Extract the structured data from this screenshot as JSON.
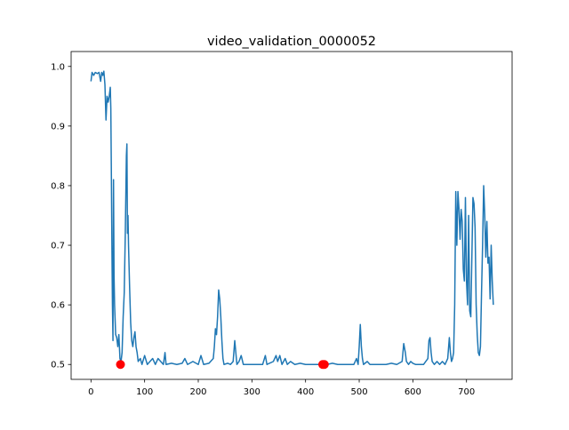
{
  "chart_data": {
    "type": "line",
    "title": "video_validation_0000052",
    "xlabel": "",
    "ylabel": "",
    "xlim": [
      -37,
      785
    ],
    "ylim": [
      0.475,
      1.025
    ],
    "x_ticks": [
      0,
      100,
      200,
      300,
      400,
      500,
      600,
      700
    ],
    "y_ticks": [
      0.5,
      0.6,
      0.7,
      0.8,
      0.9,
      1.0
    ],
    "x_tick_labels": [
      "0",
      "100",
      "200",
      "300",
      "400",
      "500",
      "600",
      "700"
    ],
    "y_tick_labels": [
      "0.5",
      "0.6",
      "0.7",
      "0.8",
      "0.9",
      "1.0"
    ],
    "grid": false,
    "series": [
      {
        "color": "#1f77b4",
        "points": [
          [
            0,
            0.975
          ],
          [
            2,
            0.99
          ],
          [
            5,
            0.985
          ],
          [
            8,
            0.99
          ],
          [
            12,
            0.988
          ],
          [
            15,
            0.99
          ],
          [
            18,
            0.975
          ],
          [
            20,
            0.99
          ],
          [
            22,
            0.985
          ],
          [
            24,
            0.992
          ],
          [
            26,
            0.97
          ],
          [
            28,
            0.91
          ],
          [
            30,
            0.95
          ],
          [
            32,
            0.94
          ],
          [
            34,
            0.95
          ],
          [
            36,
            0.965
          ],
          [
            37,
            0.93
          ],
          [
            38,
            0.82
          ],
          [
            39,
            0.7
          ],
          [
            40,
            0.6
          ],
          [
            41,
            0.54
          ],
          [
            42,
            0.81
          ],
          [
            43,
            0.65
          ],
          [
            44,
            0.6
          ],
          [
            46,
            0.55
          ],
          [
            48,
            0.545
          ],
          [
            50,
            0.53
          ],
          [
            52,
            0.55
          ],
          [
            54,
            0.51
          ],
          [
            56,
            0.505
          ],
          [
            58,
            0.52
          ],
          [
            60,
            0.58
          ],
          [
            62,
            0.62
          ],
          [
            64,
            0.72
          ],
          [
            66,
            0.85
          ],
          [
            67,
            0.87
          ],
          [
            68,
            0.72
          ],
          [
            69,
            0.75
          ],
          [
            70,
            0.7
          ],
          [
            72,
            0.63
          ],
          [
            74,
            0.57
          ],
          [
            76,
            0.54
          ],
          [
            78,
            0.53
          ],
          [
            80,
            0.545
          ],
          [
            82,
            0.555
          ],
          [
            84,
            0.53
          ],
          [
            86,
            0.52
          ],
          [
            88,
            0.505
          ],
          [
            92,
            0.51
          ],
          [
            95,
            0.5
          ],
          [
            100,
            0.515
          ],
          [
            105,
            0.5
          ],
          [
            110,
            0.505
          ],
          [
            115,
            0.51
          ],
          [
            120,
            0.5
          ],
          [
            125,
            0.51
          ],
          [
            130,
            0.505
          ],
          [
            135,
            0.5
          ],
          [
            138,
            0.52
          ],
          [
            140,
            0.5
          ],
          [
            150,
            0.502
          ],
          [
            160,
            0.5
          ],
          [
            170,
            0.502
          ],
          [
            175,
            0.51
          ],
          [
            180,
            0.5
          ],
          [
            190,
            0.505
          ],
          [
            200,
            0.5
          ],
          [
            205,
            0.515
          ],
          [
            210,
            0.5
          ],
          [
            220,
            0.502
          ],
          [
            228,
            0.51
          ],
          [
            230,
            0.53
          ],
          [
            232,
            0.56
          ],
          [
            234,
            0.55
          ],
          [
            236,
            0.58
          ],
          [
            238,
            0.625
          ],
          [
            240,
            0.61
          ],
          [
            242,
            0.58
          ],
          [
            244,
            0.54
          ],
          [
            246,
            0.51
          ],
          [
            248,
            0.5
          ],
          [
            255,
            0.502
          ],
          [
            260,
            0.5
          ],
          [
            265,
            0.505
          ],
          [
            268,
            0.54
          ],
          [
            270,
            0.52
          ],
          [
            272,
            0.5
          ],
          [
            276,
            0.505
          ],
          [
            280,
            0.515
          ],
          [
            284,
            0.5
          ],
          [
            295,
            0.5
          ],
          [
            310,
            0.5
          ],
          [
            320,
            0.5
          ],
          [
            325,
            0.515
          ],
          [
            328,
            0.5
          ],
          [
            340,
            0.505
          ],
          [
            345,
            0.515
          ],
          [
            348,
            0.505
          ],
          [
            352,
            0.515
          ],
          [
            356,
            0.5
          ],
          [
            362,
            0.51
          ],
          [
            366,
            0.5
          ],
          [
            372,
            0.505
          ],
          [
            380,
            0.5
          ],
          [
            390,
            0.502
          ],
          [
            400,
            0.5
          ],
          [
            410,
            0.5
          ],
          [
            420,
            0.5
          ],
          [
            428,
            0.5
          ],
          [
            432,
            0.5
          ],
          [
            440,
            0.5
          ],
          [
            450,
            0.502
          ],
          [
            460,
            0.5
          ],
          [
            470,
            0.5
          ],
          [
            480,
            0.5
          ],
          [
            490,
            0.5
          ],
          [
            495,
            0.51
          ],
          [
            498,
            0.5
          ],
          [
            500,
            0.53
          ],
          [
            502,
            0.567
          ],
          [
            504,
            0.53
          ],
          [
            506,
            0.51
          ],
          [
            508,
            0.5
          ],
          [
            515,
            0.505
          ],
          [
            520,
            0.5
          ],
          [
            530,
            0.5
          ],
          [
            540,
            0.5
          ],
          [
            550,
            0.5
          ],
          [
            560,
            0.502
          ],
          [
            570,
            0.5
          ],
          [
            580,
            0.505
          ],
          [
            583,
            0.535
          ],
          [
            586,
            0.52
          ],
          [
            588,
            0.505
          ],
          [
            592,
            0.5
          ],
          [
            596,
            0.505
          ],
          [
            600,
            0.502
          ],
          [
            605,
            0.5
          ],
          [
            612,
            0.5
          ],
          [
            620,
            0.5
          ],
          [
            628,
            0.51
          ],
          [
            630,
            0.54
          ],
          [
            632,
            0.545
          ],
          [
            634,
            0.52
          ],
          [
            636,
            0.505
          ],
          [
            640,
            0.5
          ],
          [
            645,
            0.505
          ],
          [
            650,
            0.5
          ],
          [
            655,
            0.505
          ],
          [
            660,
            0.5
          ],
          [
            665,
            0.51
          ],
          [
            668,
            0.545
          ],
          [
            670,
            0.52
          ],
          [
            672,
            0.505
          ],
          [
            674,
            0.51
          ],
          [
            676,
            0.52
          ],
          [
            678,
            0.6
          ],
          [
            680,
            0.79
          ],
          [
            682,
            0.7
          ],
          [
            684,
            0.79
          ],
          [
            686,
            0.76
          ],
          [
            688,
            0.71
          ],
          [
            690,
            0.76
          ],
          [
            692,
            0.74
          ],
          [
            694,
            0.66
          ],
          [
            696,
            0.64
          ],
          [
            698,
            0.78
          ],
          [
            700,
            0.64
          ],
          [
            702,
            0.6
          ],
          [
            704,
            0.75
          ],
          [
            706,
            0.59
          ],
          [
            708,
            0.58
          ],
          [
            710,
            0.68
          ],
          [
            712,
            0.78
          ],
          [
            714,
            0.77
          ],
          [
            716,
            0.73
          ],
          [
            718,
            0.6
          ],
          [
            720,
            0.55
          ],
          [
            722,
            0.52
          ],
          [
            724,
            0.515
          ],
          [
            726,
            0.53
          ],
          [
            728,
            0.62
          ],
          [
            730,
            0.7
          ],
          [
            732,
            0.8
          ],
          [
            734,
            0.75
          ],
          [
            736,
            0.68
          ],
          [
            738,
            0.74
          ],
          [
            740,
            0.67
          ],
          [
            742,
            0.68
          ],
          [
            744,
            0.61
          ],
          [
            746,
            0.7
          ],
          [
            748,
            0.64
          ],
          [
            750,
            0.6
          ]
        ]
      }
    ],
    "markers": {
      "color": "#ff0000",
      "points": [
        [
          55,
          0.5
        ],
        [
          432,
          0.5
        ],
        [
          435,
          0.5
        ]
      ]
    }
  }
}
